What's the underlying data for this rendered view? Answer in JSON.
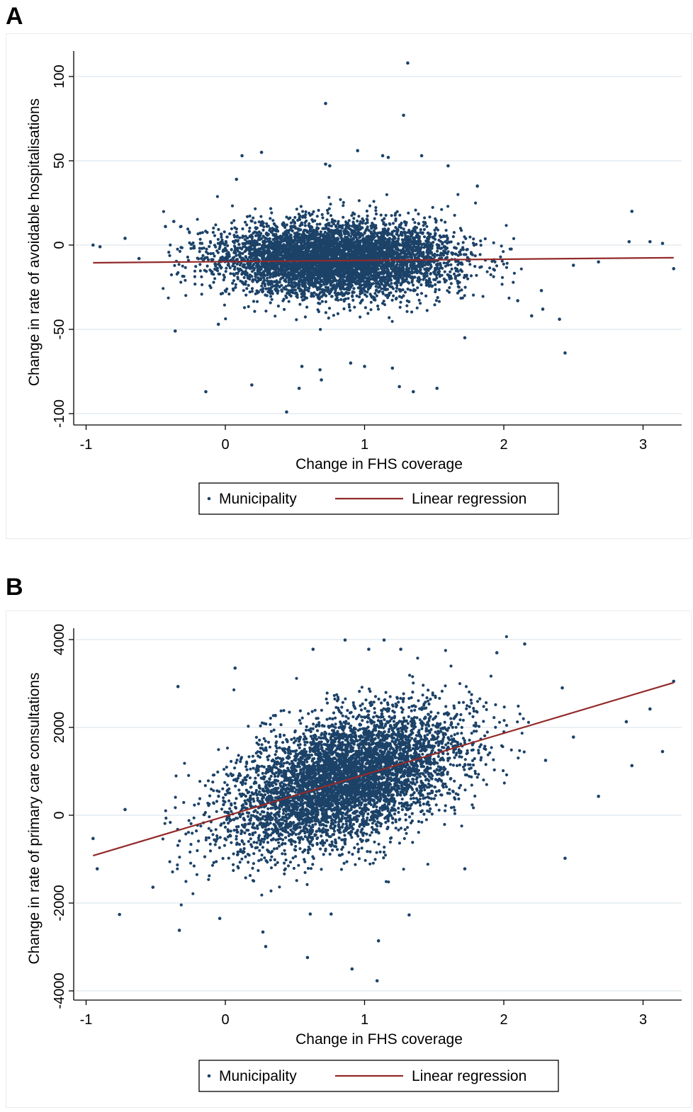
{
  "panels": [
    {
      "letter": "A",
      "chart_data": {
        "type": "scatter",
        "xlabel": "Change in FHS coverage",
        "ylabel": "Change in rate of avoidable hospitalisations",
        "xlim": [
          -1.0,
          3.3
        ],
        "ylim": [
          -105,
          117
        ],
        "xticks": [
          -1,
          0,
          1,
          2,
          3
        ],
        "yticks": [
          -100,
          -50,
          0,
          50,
          100
        ],
        "grid": "horizontal",
        "legend": {
          "position": "bottom",
          "entries": [
            "Municipality",
            "Linear regression"
          ]
        },
        "cloud": {
          "n": 5500,
          "x_mean": 0.8,
          "x_sd": 0.42,
          "y_mean": -8,
          "y_sd": 11
        },
        "points": [
          {
            "x": -0.95,
            "y": 0
          },
          {
            "x": -0.9,
            "y": -1
          },
          {
            "x": -0.72,
            "y": 4
          },
          {
            "x": -0.62,
            "y": -8
          },
          {
            "x": -0.43,
            "y": 11
          },
          {
            "x": -0.37,
            "y": 14
          },
          {
            "x": -0.36,
            "y": -51
          },
          {
            "x": -0.14,
            "y": -87
          },
          {
            "x": -0.05,
            "y": -47
          },
          {
            "x": 0.08,
            "y": 39
          },
          {
            "x": 0.12,
            "y": 53
          },
          {
            "x": 0.19,
            "y": -83
          },
          {
            "x": 0.26,
            "y": 55
          },
          {
            "x": 0.44,
            "y": -99
          },
          {
            "x": 0.53,
            "y": -85
          },
          {
            "x": 0.55,
            "y": -72
          },
          {
            "x": 0.68,
            "y": -74
          },
          {
            "x": 0.69,
            "y": -80
          },
          {
            "x": 0.72,
            "y": 48
          },
          {
            "x": 0.72,
            "y": 84
          },
          {
            "x": 0.75,
            "y": 47
          },
          {
            "x": 0.9,
            "y": -70
          },
          {
            "x": 0.95,
            "y": 56
          },
          {
            "x": 1.0,
            "y": -72
          },
          {
            "x": 1.13,
            "y": 53
          },
          {
            "x": 1.17,
            "y": 52
          },
          {
            "x": 1.2,
            "y": -73
          },
          {
            "x": 1.25,
            "y": -84
          },
          {
            "x": 1.28,
            "y": 77
          },
          {
            "x": 1.31,
            "y": 108
          },
          {
            "x": 1.35,
            "y": -87
          },
          {
            "x": 1.41,
            "y": 53
          },
          {
            "x": 1.52,
            "y": -85
          },
          {
            "x": 1.6,
            "y": 47
          },
          {
            "x": 1.72,
            "y": -55
          },
          {
            "x": 1.81,
            "y": 35
          },
          {
            "x": 2.1,
            "y": -33
          },
          {
            "x": 2.2,
            "y": -42
          },
          {
            "x": 2.27,
            "y": -27
          },
          {
            "x": 2.28,
            "y": -38
          },
          {
            "x": 2.4,
            "y": -44
          },
          {
            "x": 2.44,
            "y": -64
          },
          {
            "x": 2.5,
            "y": -12
          },
          {
            "x": 2.68,
            "y": -10
          },
          {
            "x": 2.9,
            "y": 2
          },
          {
            "x": 2.92,
            "y": 20
          },
          {
            "x": 3.05,
            "y": 2
          },
          {
            "x": 3.14,
            "y": 1
          },
          {
            "x": 3.22,
            "y": -14
          }
        ],
        "series": [
          {
            "name": "Linear regression",
            "type": "line",
            "x": [
              -0.95,
              3.22
            ],
            "y": [
              -10.5,
              -7.5
            ]
          }
        ]
      }
    },
    {
      "letter": "B",
      "chart_data": {
        "type": "scatter",
        "xlabel": "Change in FHS coverage",
        "ylabel": "Change in rate of primary care consultations",
        "xlim": [
          -1.0,
          3.3
        ],
        "ylim": [
          -4100,
          4100
        ],
        "xticks": [
          -1,
          0,
          1,
          2,
          3
        ],
        "yticks": [
          -4000,
          -2000,
          0,
          2000,
          4000
        ],
        "grid": "horizontal",
        "legend": {
          "position": "bottom",
          "entries": [
            "Municipality",
            "Linear regression"
          ]
        },
        "cloud": {
          "n": 5500,
          "x_mean": 0.85,
          "x_sd": 0.42,
          "y_slope": 930,
          "y_intercept": 0,
          "y_sd": 700
        },
        "points": [
          {
            "x": -0.95,
            "y": -530
          },
          {
            "x": -0.92,
            "y": -1220
          },
          {
            "x": -0.76,
            "y": -2260
          },
          {
            "x": -0.72,
            "y": 130
          },
          {
            "x": -0.52,
            "y": -1640
          },
          {
            "x": -0.34,
            "y": 2930
          },
          {
            "x": -0.33,
            "y": -2620
          },
          {
            "x": -0.04,
            "y": -2350
          },
          {
            "x": 0.07,
            "y": 3350
          },
          {
            "x": 0.27,
            "y": -2660
          },
          {
            "x": 0.29,
            "y": -2990
          },
          {
            "x": 0.59,
            "y": -3240
          },
          {
            "x": 0.61,
            "y": -2250
          },
          {
            "x": 0.63,
            "y": 3780
          },
          {
            "x": 0.76,
            "y": -2250
          },
          {
            "x": 0.86,
            "y": 3990
          },
          {
            "x": 0.91,
            "y": -3500
          },
          {
            "x": 1.03,
            "y": 3780
          },
          {
            "x": 1.09,
            "y": -3770
          },
          {
            "x": 1.1,
            "y": -2860
          },
          {
            "x": 1.14,
            "y": 3990
          },
          {
            "x": 1.26,
            "y": 3780
          },
          {
            "x": 1.32,
            "y": -2270
          },
          {
            "x": 1.72,
            "y": -1220
          },
          {
            "x": 1.95,
            "y": 3700
          },
          {
            "x": 2.15,
            "y": 3900
          },
          {
            "x": 2.3,
            "y": 1250
          },
          {
            "x": 2.42,
            "y": 2900
          },
          {
            "x": 2.44,
            "y": -980
          },
          {
            "x": 2.5,
            "y": 1780
          },
          {
            "x": 2.68,
            "y": 430
          },
          {
            "x": 2.88,
            "y": 2130
          },
          {
            "x": 2.92,
            "y": 1130
          },
          {
            "x": 3.05,
            "y": 2420
          },
          {
            "x": 3.14,
            "y": 1450
          },
          {
            "x": 3.22,
            "y": 3050
          }
        ],
        "series": [
          {
            "name": "Linear regression",
            "type": "line",
            "x": [
              -0.95,
              3.22
            ],
            "y": [
              -920,
              3020
            ]
          }
        ]
      }
    }
  ],
  "colors": {
    "points": "#1c4268",
    "line": "#932a2a",
    "grid": "#e3ecf0",
    "frame": "#e6ecef"
  }
}
